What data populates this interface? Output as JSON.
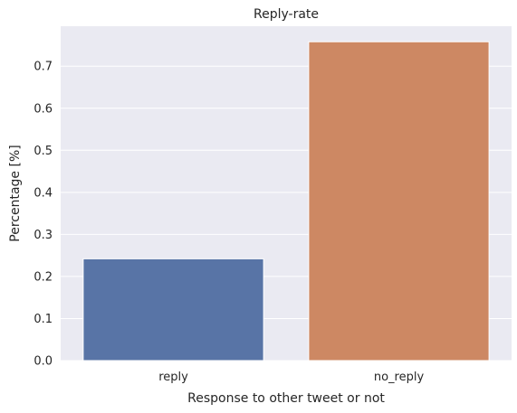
{
  "chart_data": {
    "type": "bar",
    "title": "Reply-rate",
    "xlabel": "Response to other tweet or not",
    "ylabel": "Percentage [%]",
    "categories": [
      "reply",
      "no_reply"
    ],
    "values": [
      0.242,
      0.758
    ],
    "colors": [
      "#5874a6",
      "#cd8863"
    ],
    "ylim": [
      0,
      0.795
    ],
    "yticks": [
      0.0,
      0.1,
      0.2,
      0.3,
      0.4,
      0.5,
      0.6,
      0.7
    ],
    "ytick_labels": [
      "0.0",
      "0.1",
      "0.2",
      "0.3",
      "0.4",
      "0.5",
      "0.6",
      "0.7"
    ],
    "grid": true,
    "background": "#eaeaf2",
    "grid_color": "#ffffff"
  }
}
